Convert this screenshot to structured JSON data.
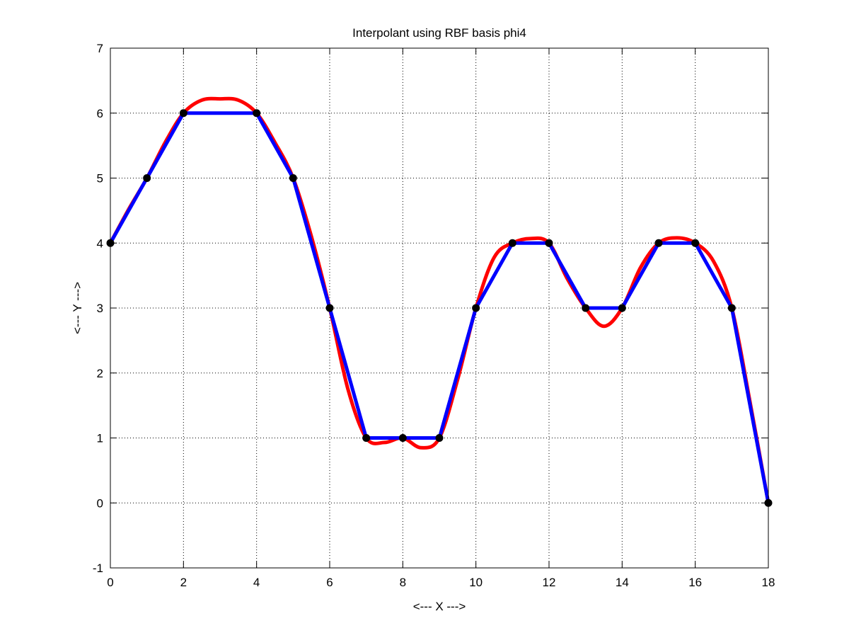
{
  "chart_data": {
    "type": "line",
    "title": "Interpolant using RBF basis phi4",
    "xlabel": "<--- X --->",
    "ylabel": "<--- Y --->",
    "xlim": [
      0,
      18
    ],
    "ylim": [
      -1,
      7
    ],
    "xticks": [
      0,
      2,
      4,
      6,
      8,
      10,
      12,
      14,
      16,
      18
    ],
    "yticks": [
      -1,
      0,
      1,
      2,
      3,
      4,
      5,
      6,
      7
    ],
    "grid": true,
    "legend": "none",
    "series": [
      {
        "style": "smooth-interpolant",
        "color": "#ff0000",
        "x": [
          0,
          0.5,
          1,
          1.5,
          2,
          2.5,
          3,
          3.5,
          4,
          4.5,
          5,
          5.5,
          6,
          6.5,
          7,
          7.5,
          8,
          8.5,
          9,
          9.5,
          10,
          10.5,
          11,
          11.5,
          12,
          12.5,
          13,
          13.5,
          14,
          14.5,
          15,
          15.5,
          16,
          16.5,
          17,
          17.5,
          18
        ],
        "y": [
          4,
          4.52,
          5,
          5.55,
          6,
          6.2,
          6.22,
          6.2,
          6,
          5.55,
          5,
          4.1,
          3,
          1.75,
          1,
          0.93,
          1,
          0.85,
          1,
          1.9,
          3,
          3.78,
          4,
          4.07,
          4,
          3.45,
          3,
          2.72,
          3,
          3.62,
          4,
          4.08,
          4,
          3.72,
          3,
          1.55,
          0
        ]
      },
      {
        "style": "piecewise-linear",
        "color": "#0000ff",
        "x": [
          0,
          1,
          2,
          3,
          4,
          5,
          6,
          7,
          8,
          9,
          10,
          11,
          12,
          13,
          14,
          15,
          16,
          17,
          18
        ],
        "y": [
          4,
          5,
          6,
          6,
          6,
          5,
          3,
          1,
          1,
          1,
          3,
          4,
          4,
          3,
          3,
          4,
          4,
          3,
          0
        ]
      },
      {
        "style": "markers",
        "color": "#000000",
        "x": [
          0,
          1,
          2,
          4,
          5,
          6,
          7,
          8,
          9,
          10,
          11,
          12,
          13,
          14,
          15,
          16,
          17,
          18
        ],
        "y": [
          4,
          5,
          6,
          6,
          5,
          3,
          1,
          1,
          1,
          3,
          4,
          4,
          3,
          3,
          4,
          4,
          3,
          0
        ]
      }
    ]
  }
}
